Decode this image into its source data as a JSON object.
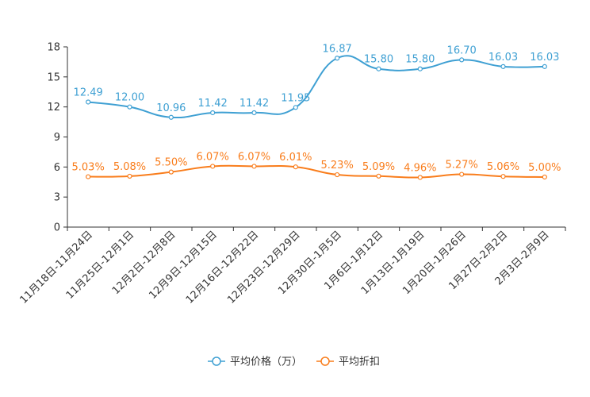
{
  "chart_data": {
    "type": "line",
    "title": "",
    "xlabel": "",
    "ylabel": "",
    "ylim": [
      0,
      18
    ],
    "yticks": [
      0,
      3,
      6,
      9,
      12,
      15,
      18
    ],
    "grid": false,
    "legend_position": "bottom-center",
    "categories": [
      "11月18日-11月24日",
      "11月25日-12月1日",
      "12月2日-12月8日",
      "12月9日-12月15日",
      "12月16日-12月22日",
      "12月23日-12月29日",
      "12月30日-1月5日",
      "1月6日-1月12日",
      "1月13日-1月19日",
      "1月20日-1月26日",
      "1月27日-2月2日",
      "2月3日-2月9日"
    ],
    "series": [
      {
        "name": "平均价格（万）",
        "color": "#3fa0d3",
        "values": [
          12.49,
          12.0,
          10.96,
          11.42,
          11.42,
          11.95,
          16.87,
          15.8,
          15.8,
          16.7,
          16.03,
          16.03
        ],
        "labels": [
          "12.49",
          "12.00",
          "10.96",
          "11.42",
          "11.42",
          "11.95",
          "16.87",
          "15.80",
          "15.80",
          "16.70",
          "16.03",
          "16.03"
        ]
      },
      {
        "name": "平均折扣",
        "color": "#f97d1c",
        "values": [
          5.03,
          5.08,
          5.5,
          6.07,
          6.07,
          6.01,
          5.23,
          5.09,
          4.96,
          5.27,
          5.06,
          5.0
        ],
        "labels": [
          "5.03%",
          "5.08%",
          "5.50%",
          "6.07%",
          "6.07%",
          "6.01%",
          "5.23%",
          "5.09%",
          "4.96%",
          "5.27%",
          "5.06%",
          "5.00%"
        ]
      }
    ]
  }
}
